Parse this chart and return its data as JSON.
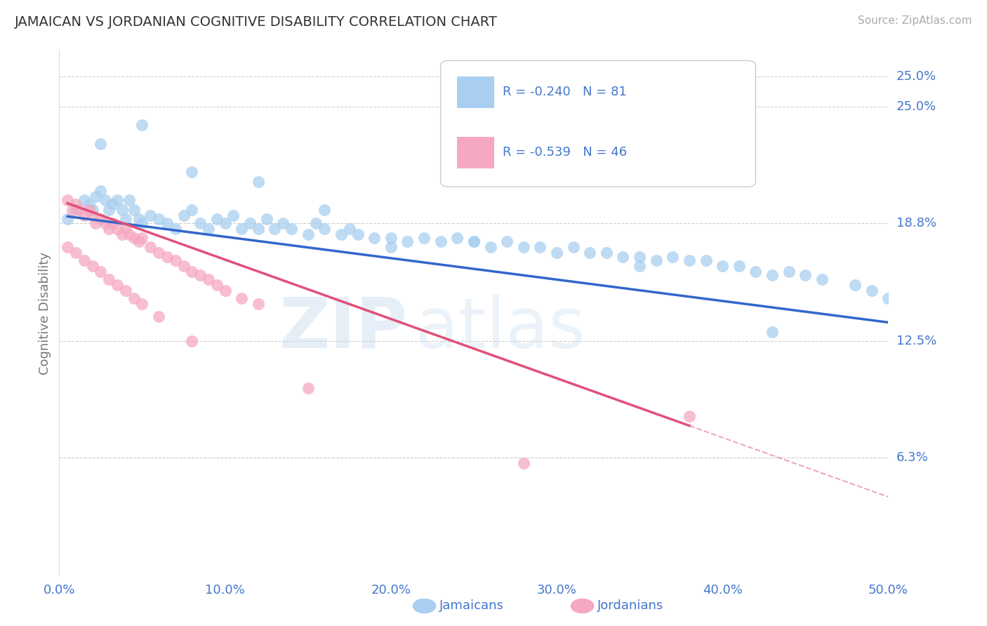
{
  "title": "JAMAICAN VS JORDANIAN COGNITIVE DISABILITY CORRELATION CHART",
  "source_text": "Source: ZipAtlas.com",
  "ylabel": "Cognitive Disability",
  "xlim": [
    0.0,
    0.5
  ],
  "ylim": [
    0.0,
    0.28
  ],
  "ytick_vals": [
    0.063,
    0.125,
    0.188,
    0.25
  ],
  "ytick_labels": [
    "6.3%",
    "12.5%",
    "18.8%",
    "25.0%"
  ],
  "xticks": [
    0.0,
    0.1,
    0.2,
    0.3,
    0.4,
    0.5
  ],
  "xtick_labels": [
    "0.0%",
    "10.0%",
    "20.0%",
    "30.0%",
    "40.0%",
    "50.0%"
  ],
  "jamaican_color": "#a8cff0",
  "jordanian_color": "#f5a8c0",
  "trend_jamaican_color": "#3366cc",
  "trend_jordanian_color": "#e0507a",
  "watermark_zip": "ZIP",
  "watermark_atlas": "atlas",
  "legend_R_jamaican": "-0.240",
  "legend_N_jamaican": "81",
  "legend_R_jordanian": "-0.539",
  "legend_N_jordanian": "46",
  "jamaican_x": [
    0.005,
    0.01,
    0.015,
    0.018,
    0.02,
    0.022,
    0.025,
    0.028,
    0.03,
    0.032,
    0.035,
    0.038,
    0.04,
    0.042,
    0.045,
    0.048,
    0.05,
    0.055,
    0.06,
    0.065,
    0.07,
    0.075,
    0.08,
    0.085,
    0.09,
    0.095,
    0.1,
    0.105,
    0.11,
    0.115,
    0.12,
    0.125,
    0.13,
    0.135,
    0.14,
    0.15,
    0.155,
    0.16,
    0.17,
    0.175,
    0.18,
    0.19,
    0.2,
    0.21,
    0.22,
    0.23,
    0.24,
    0.25,
    0.26,
    0.27,
    0.28,
    0.29,
    0.3,
    0.31,
    0.32,
    0.33,
    0.34,
    0.35,
    0.36,
    0.37,
    0.38,
    0.39,
    0.4,
    0.41,
    0.42,
    0.43,
    0.44,
    0.45,
    0.46,
    0.48,
    0.49,
    0.5,
    0.025,
    0.05,
    0.08,
    0.12,
    0.16,
    0.2,
    0.25,
    0.35,
    0.43
  ],
  "jamaican_y": [
    0.19,
    0.195,
    0.2,
    0.198,
    0.195,
    0.202,
    0.205,
    0.2,
    0.195,
    0.198,
    0.2,
    0.195,
    0.19,
    0.2,
    0.195,
    0.19,
    0.188,
    0.192,
    0.19,
    0.188,
    0.185,
    0.192,
    0.195,
    0.188,
    0.185,
    0.19,
    0.188,
    0.192,
    0.185,
    0.188,
    0.185,
    0.19,
    0.185,
    0.188,
    0.185,
    0.182,
    0.188,
    0.185,
    0.182,
    0.185,
    0.182,
    0.18,
    0.18,
    0.178,
    0.18,
    0.178,
    0.18,
    0.178,
    0.175,
    0.178,
    0.175,
    0.175,
    0.172,
    0.175,
    0.172,
    0.172,
    0.17,
    0.17,
    0.168,
    0.17,
    0.168,
    0.168,
    0.165,
    0.165,
    0.162,
    0.16,
    0.162,
    0.16,
    0.158,
    0.155,
    0.152,
    0.148,
    0.23,
    0.24,
    0.215,
    0.21,
    0.195,
    0.175,
    0.178,
    0.165,
    0.13
  ],
  "jordanian_x": [
    0.005,
    0.008,
    0.01,
    0.012,
    0.015,
    0.018,
    0.02,
    0.022,
    0.025,
    0.028,
    0.03,
    0.032,
    0.035,
    0.038,
    0.04,
    0.042,
    0.045,
    0.048,
    0.05,
    0.055,
    0.06,
    0.065,
    0.07,
    0.075,
    0.08,
    0.085,
    0.09,
    0.095,
    0.1,
    0.11,
    0.12,
    0.005,
    0.01,
    0.015,
    0.02,
    0.025,
    0.03,
    0.035,
    0.04,
    0.045,
    0.05,
    0.06,
    0.08,
    0.15,
    0.28,
    0.38
  ],
  "jordanian_y": [
    0.2,
    0.195,
    0.198,
    0.195,
    0.192,
    0.195,
    0.192,
    0.188,
    0.19,
    0.188,
    0.185,
    0.188,
    0.185,
    0.182,
    0.185,
    0.182,
    0.18,
    0.178,
    0.18,
    0.175,
    0.172,
    0.17,
    0.168,
    0.165,
    0.162,
    0.16,
    0.158,
    0.155,
    0.152,
    0.148,
    0.145,
    0.175,
    0.172,
    0.168,
    0.165,
    0.162,
    0.158,
    0.155,
    0.152,
    0.148,
    0.145,
    0.138,
    0.125,
    0.1,
    0.06,
    0.085
  ],
  "jor_trend_start": 0.005,
  "jor_trend_solid_end": 0.38,
  "jor_trend_dash_end": 0.5,
  "jam_trend_start": 0.005,
  "jam_trend_end": 0.5,
  "background_color": "#ffffff",
  "grid_color": "#cccccc",
  "axis_color": "#4477cc",
  "title_color": "#333333",
  "ylabel_color": "#777777"
}
